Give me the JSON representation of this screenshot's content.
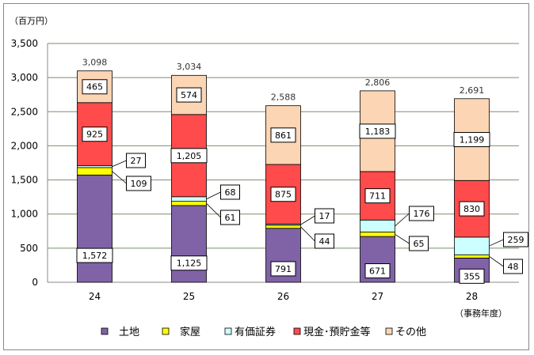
{
  "chart_data": {
    "type": "bar",
    "stacked": true,
    "unit_label": "（百万円）",
    "xlabel": "（事務年度）",
    "categories": [
      "24",
      "25",
      "26",
      "27",
      "28"
    ],
    "ylim": [
      0,
      3500
    ],
    "yticks": [
      0,
      500,
      1000,
      1500,
      2000,
      2500,
      3000,
      3500
    ],
    "ytick_labels": [
      "0",
      "500",
      "1,000",
      "1,500",
      "2,000",
      "2,500",
      "3,000",
      "3,500"
    ],
    "grid": true,
    "legend_position": "bottom",
    "series": [
      {
        "name": "土地",
        "color": "#7f63a6",
        "values": [
          1572,
          1125,
          791,
          671,
          355
        ],
        "labels": [
          "1,572",
          "1,125",
          "791",
          "671",
          "355"
        ]
      },
      {
        "name": "家屋",
        "color": "#ffff00",
        "values": [
          109,
          61,
          44,
          65,
          48
        ],
        "labels": [
          "109",
          "61",
          "44",
          "65",
          "48"
        ]
      },
      {
        "name": "有価証券",
        "color": "#ccffff",
        "values": [
          27,
          68,
          17,
          176,
          259
        ],
        "labels": [
          "27",
          "68",
          "17",
          "176",
          "259"
        ]
      },
      {
        "name": "現金･預貯金等",
        "color": "#ff4b4b",
        "values": [
          925,
          1205,
          875,
          711,
          830
        ],
        "labels": [
          "925",
          "1,205",
          "875",
          "711",
          "830"
        ]
      },
      {
        "name": "その他",
        "color": "#fcd5b4",
        "values": [
          465,
          574,
          861,
          1183,
          1199
        ],
        "labels": [
          "465",
          "574",
          "861",
          "1,183",
          "1,199"
        ]
      }
    ],
    "totals": [
      3098,
      3034,
      2588,
      2806,
      2691
    ],
    "total_labels": [
      "3,098",
      "3,034",
      "2,588",
      "2,806",
      "2,691"
    ]
  }
}
